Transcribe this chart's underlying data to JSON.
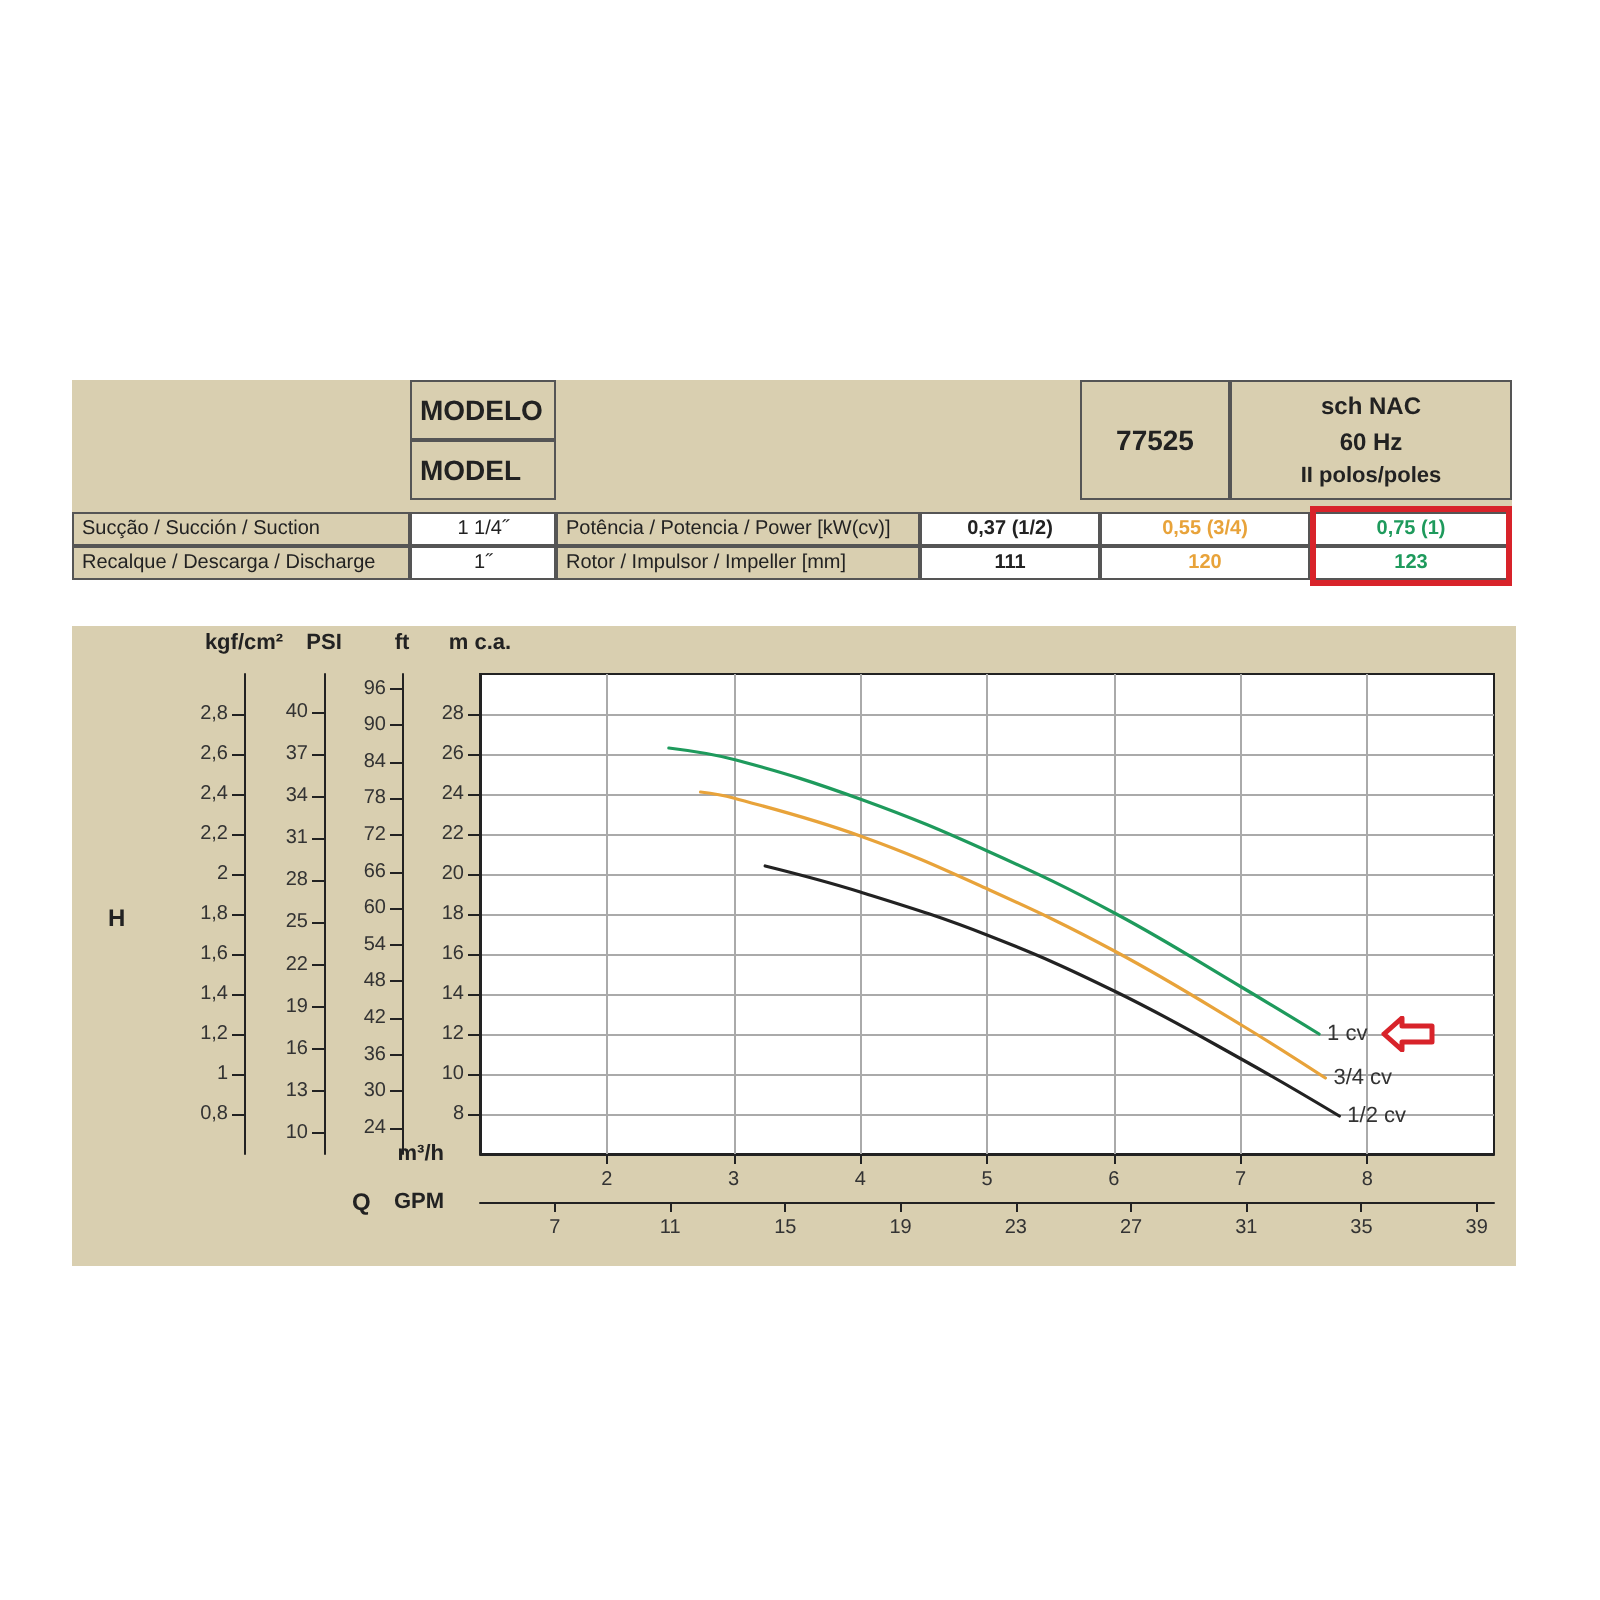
{
  "chart_data": {
    "type": "line",
    "xlabel": "m³/h",
    "ylabel": "m c.a.",
    "x2label": "GPM",
    "y2label": "ft",
    "y3label": "PSI",
    "xlim": [
      1,
      9
    ],
    "xticks": [
      2,
      3,
      4,
      5,
      6,
      7,
      8
    ],
    "x2lim": [
      4.4,
      39.6
    ],
    "x2ticks": [
      7,
      11,
      15,
      19,
      23,
      27,
      31,
      35,
      39
    ],
    "ylim": [
      6,
      30
    ],
    "yticks": [
      8,
      10,
      12,
      14,
      16,
      18,
      20,
      22,
      24,
      26,
      28
    ],
    "y2lim": [
      19.7,
      98.4
    ],
    "y2ticks": [
      24,
      30,
      36,
      42,
      48,
      54,
      60,
      66,
      72,
      78,
      84,
      90,
      96
    ],
    "y3lim": [
      8.5,
      42.7
    ],
    "y3ticks": [
      10,
      13,
      16,
      19,
      22,
      25,
      28,
      31,
      34,
      37,
      40
    ],
    "series": [
      {
        "name": "1 cv",
        "color": "#1e9a5c",
        "x": [
          2.49,
          3.02,
          4.02,
          5.02,
          6.02,
          7.02,
          7.62
        ],
        "values": [
          26.3,
          25.7,
          23.7,
          21.1,
          18.0,
          14.3,
          12.0
        ]
      },
      {
        "name": "3/4 cv",
        "color": "#e8a33a",
        "x": [
          2.74,
          3.0,
          4.0,
          5.02,
          6.02,
          7.02,
          7.67
        ],
        "values": [
          24.1,
          23.8,
          21.9,
          19.2,
          16.1,
          12.4,
          9.8
        ]
      },
      {
        "name": "1/2 cv",
        "color": "#222222",
        "x": [
          3.25,
          4.0,
          5.02,
          6.02,
          7.02,
          7.78
        ],
        "values": [
          20.4,
          19.1,
          16.9,
          14.1,
          10.7,
          7.9
        ]
      }
    ],
    "grid": true,
    "legend": false,
    "marker": "none",
    "line_style": "solid",
    "annotations": [
      "MODELO",
      "MODEL",
      "77525",
      "sch NAC",
      "60 Hz",
      "II polos/poles",
      "Sucção / Succión / Suction",
      "1 1/4˝",
      "Potência / Potencia / Power [kW(cv)]",
      "0,37 (1/2)",
      "0,55 (3/4)",
      "0,75 (1)",
      "Recalque / Descarga / Discharge",
      "1˝",
      "Rotor / Impulsor / Impeller [mm]",
      "111",
      "120",
      "123",
      "H",
      "Q",
      "kgf/cm²",
      "0,8",
      "1",
      "1,2",
      "1,4",
      "1,6",
      "1,8",
      "2",
      "2,2",
      "2,4",
      "2,6",
      "2,8"
    ]
  }
}
